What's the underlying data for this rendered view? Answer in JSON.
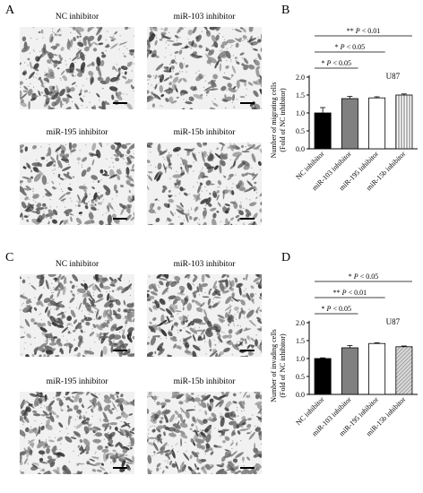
{
  "panels": {
    "A": {
      "letter": "A",
      "images": [
        {
          "label": "NC inhibitor"
        },
        {
          "label": "miR-103 inhibitor"
        },
        {
          "label": "miR-195 inhibitor"
        },
        {
          "label": "miR-15b inhibitor"
        }
      ]
    },
    "C": {
      "letter": "C",
      "images": [
        {
          "label": "NC inhibitor"
        },
        {
          "label": "miR-103 inhibitor"
        },
        {
          "label": "miR-195 inhibitor"
        },
        {
          "label": "miR-15b inhibitor"
        }
      ]
    },
    "B": {
      "letter": "B"
    },
    "D": {
      "letter": "D"
    }
  },
  "chart_data": [
    {
      "type": "bar",
      "panel": "B",
      "categories": [
        "NC inhibitor",
        "miR-103 inhibitor",
        "miR-195 inhibitor",
        "miR-15b inhibitor"
      ],
      "values": [
        1.0,
        1.4,
        1.42,
        1.5
      ],
      "errors": [
        0.15,
        0.06,
        0.03,
        0.03
      ],
      "bar_colors": [
        "#000000",
        "#808080",
        "#ffffff",
        "#ffffff"
      ],
      "bar_patterns": [
        "solid",
        "solid",
        "solid",
        "vertical-lines"
      ],
      "ylabel_lines": [
        "Number of migrating cells",
        "(Fold of NC inhibitor)"
      ],
      "yticks": [
        "0.0",
        "0.5",
        "1.0",
        "1.5",
        "2.0"
      ],
      "ylim": [
        0,
        2.0
      ],
      "cell_line": "U87",
      "annotations": [
        {
          "stars": "**",
          "p": "P",
          "text": " < 0.01",
          "from": 0,
          "to": 3
        },
        {
          "stars": "*",
          "p": "P",
          "text": " < 0.05",
          "from": 0,
          "to": 2
        },
        {
          "stars": "*",
          "p": "P",
          "text": " < 0.05",
          "from": 0,
          "to": 1
        }
      ]
    },
    {
      "type": "bar",
      "panel": "D",
      "categories": [
        "NC inhibitor",
        "miR-103 inhibitor",
        "miR-195 inhibitor",
        "miR-15b inhibitor"
      ],
      "values": [
        1.0,
        1.3,
        1.42,
        1.33
      ],
      "errors": [
        0.02,
        0.06,
        0.02,
        0.02
      ],
      "bar_colors": [
        "#000000",
        "#808080",
        "#ffffff",
        "#c8c8c8"
      ],
      "bar_patterns": [
        "solid",
        "solid",
        "solid",
        "diagonal-lines"
      ],
      "ylabel_lines": [
        "Number of invading cells",
        "(Fold of NC inhibitor)"
      ],
      "yticks": [
        "0.0",
        "0.5",
        "1.0",
        "1.5",
        "2.0"
      ],
      "ylim": [
        0,
        2.0
      ],
      "cell_line": "U87",
      "annotations": [
        {
          "stars": "*",
          "p": "P",
          "text": " < 0.05",
          "from": 0,
          "to": 3
        },
        {
          "stars": "**",
          "p": "P",
          "text": " < 0.01",
          "from": 0,
          "to": 2
        },
        {
          "stars": "*",
          "p": "P",
          "text": " < 0.05",
          "from": 0,
          "to": 1
        }
      ]
    }
  ]
}
